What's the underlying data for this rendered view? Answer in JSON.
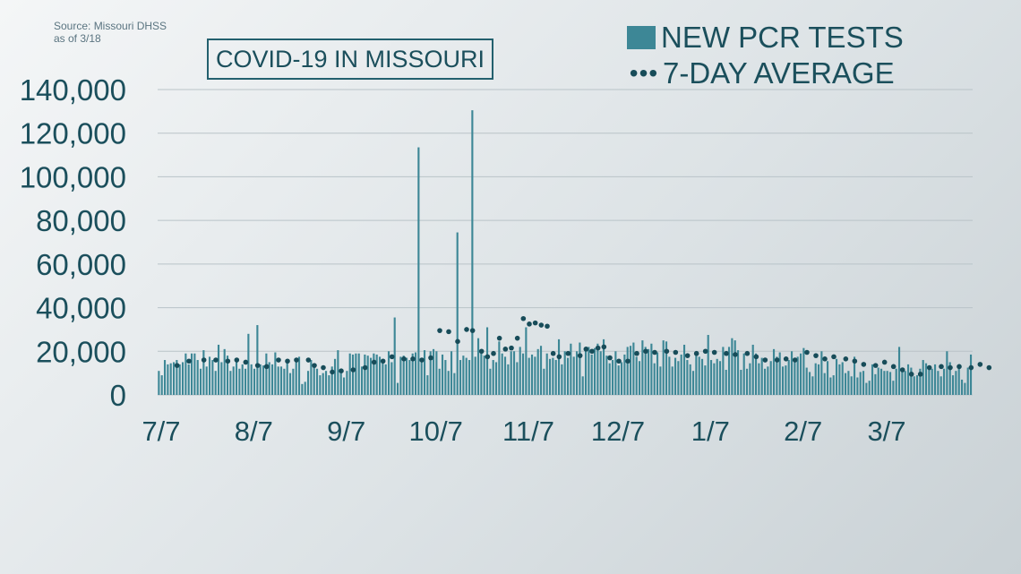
{
  "source": {
    "line1": "Source: Missouri DHSS",
    "line2": "as of 3/18"
  },
  "chart_data": {
    "type": "bar",
    "title": "COVID-19 IN MISSOURI",
    "xlabel": "",
    "ylabel": "",
    "ylim": [
      0,
      140000
    ],
    "yticks": [
      0,
      20000,
      40000,
      60000,
      80000,
      100000,
      120000,
      140000
    ],
    "ytick_labels": [
      "0",
      "20,000",
      "40,000",
      "60,000",
      "80,000",
      "100,000",
      "120,000",
      "140,000"
    ],
    "xtick_labels": [
      "7/7",
      "8/7",
      "9/7",
      "10/7",
      "11/7",
      "12/7",
      "1/7",
      "2/7",
      "3/7"
    ],
    "xtick_day_index": [
      0,
      31,
      62,
      92,
      123,
      153,
      184,
      215,
      243
    ],
    "grid": true,
    "legend_position": "top-right",
    "colors": {
      "bars": "#3d8796",
      "dots": "#174c59",
      "grid": "#b9c3c8",
      "text": "#1b4f5c"
    },
    "series": [
      {
        "name": "NEW PCR TESTS",
        "type": "bar",
        "values": [
          11000,
          9000,
          16000,
          14000,
          14500,
          15000,
          16000,
          14000,
          15000,
          19000,
          14000,
          19000,
          19000,
          16000,
          12000,
          20500,
          13000,
          17500,
          16000,
          11000,
          23000,
          15000,
          21000,
          18000,
          11000,
          13000,
          15000,
          12000,
          14000,
          12000,
          28000,
          14000,
          12000,
          32000,
          14000,
          13500,
          19000,
          15000,
          14000,
          19500,
          13000,
          13000,
          12000,
          15000,
          10000,
          12000,
          15000,
          17500,
          5000,
          6000,
          11000,
          16000,
          14000,
          12000,
          9000,
          10000,
          11000,
          9000,
          13000,
          16500,
          20500,
          10000,
          8000,
          11000,
          19000,
          18500,
          19000,
          19000,
          13000,
          18500,
          18000,
          17000,
          19000,
          18500,
          17500,
          15000,
          14000,
          20000,
          15000,
          35500,
          5500,
          17500,
          18000,
          17000,
          16000,
          19000,
          19500,
          113500,
          15000,
          20500,
          9000,
          20000,
          21000,
          20000,
          12000,
          18500,
          16000,
          11000,
          20000,
          10000,
          74500,
          16000,
          18000,
          17000,
          16000,
          130500,
          17500,
          26000,
          19500,
          18000,
          31000,
          12000,
          16000,
          15000,
          24500,
          19000,
          17500,
          14000,
          20000,
          20000,
          15000,
          22000,
          19000,
          31000,
          17000,
          18500,
          17500,
          21000,
          22500,
          12000,
          19000,
          16500,
          17000,
          16000,
          25500,
          14000,
          20000,
          17000,
          23500,
          17500,
          20000,
          24000,
          8500,
          20500,
          22000,
          18500,
          21500,
          23500,
          20000,
          25500,
          18000,
          14500,
          16000,
          20000,
          13500,
          15000,
          18500,
          22000,
          22500,
          24000,
          17500,
          15500,
          25000,
          22000,
          21000,
          23500,
          14500,
          19500,
          13000,
          25000,
          24500,
          17500,
          13000,
          17000,
          15500,
          18500,
          23000,
          16000,
          14000,
          11000,
          20000,
          17500,
          16500,
          13500,
          27500,
          16000,
          14500,
          16500,
          15500,
          22000,
          11500,
          22000,
          26000,
          25000,
          20500,
          11500,
          19000,
          12000,
          14500,
          23000,
          19000,
          14500,
          17000,
          12000,
          13000,
          15500,
          21000,
          17500,
          19500,
          13000,
          13500,
          16000,
          20000,
          15500,
          17500,
          19000,
          21500,
          12500,
          10500,
          8500,
          14500,
          14000,
          20000,
          10000,
          15500,
          8000,
          9000,
          16500,
          14000,
          15000,
          10000,
          11000,
          8500,
          17500,
          8000,
          10500,
          11000,
          5500,
          6500,
          14000,
          9500,
          12500,
          12000,
          11000,
          11000,
          10500,
          6500,
          12000,
          22000,
          11500,
          11000,
          14000,
          12500,
          8500,
          9000,
          12000,
          16000,
          14500,
          11500,
          12000,
          14000,
          11000,
          8500,
          12000,
          20000,
          15000,
          9000,
          11000,
          12000,
          7000,
          5500,
          12500,
          18500
        ]
      },
      {
        "name": "7-DAY AVERAGE",
        "type": "scatter",
        "points": [
          [
            6,
            13500
          ],
          [
            10,
            15500
          ],
          [
            15,
            16000
          ],
          [
            19,
            16000
          ],
          [
            23,
            15500
          ],
          [
            26,
            16000
          ],
          [
            29,
            15000
          ],
          [
            33,
            13500
          ],
          [
            36,
            13000
          ],
          [
            40,
            16000
          ],
          [
            43,
            15500
          ],
          [
            46,
            16000
          ],
          [
            50,
            16000
          ],
          [
            52,
            13500
          ],
          [
            55,
            12500
          ],
          [
            58,
            10500
          ],
          [
            61,
            11000
          ],
          [
            65,
            11500
          ],
          [
            69,
            12500
          ],
          [
            72,
            15000
          ],
          [
            75,
            15500
          ],
          [
            78,
            17500
          ],
          [
            82,
            16500
          ],
          [
            85,
            16500
          ],
          [
            88,
            16000
          ],
          [
            91,
            17000
          ],
          [
            94,
            29500
          ],
          [
            97,
            29000
          ],
          [
            100,
            24500
          ],
          [
            103,
            30000
          ],
          [
            105,
            29500
          ],
          [
            108,
            20000
          ],
          [
            110,
            17500
          ],
          [
            112,
            19000
          ],
          [
            114,
            26000
          ],
          [
            116,
            21000
          ],
          [
            118,
            21500
          ],
          [
            120,
            26000
          ],
          [
            122,
            35000
          ],
          [
            124,
            32500
          ],
          [
            126,
            33000
          ],
          [
            128,
            32000
          ],
          [
            130,
            31500
          ],
          [
            132,
            19000
          ],
          [
            134,
            17500
          ],
          [
            137,
            19000
          ],
          [
            141,
            18000
          ],
          [
            143,
            21000
          ],
          [
            145,
            20000
          ],
          [
            147,
            21500
          ],
          [
            149,
            22000
          ],
          [
            151,
            17000
          ],
          [
            154,
            15500
          ],
          [
            157,
            15500
          ],
          [
            160,
            19000
          ],
          [
            163,
            20000
          ],
          [
            166,
            19500
          ],
          [
            170,
            20000
          ],
          [
            173,
            19500
          ],
          [
            177,
            18000
          ],
          [
            180,
            19000
          ],
          [
            183,
            20000
          ],
          [
            186,
            19500
          ],
          [
            190,
            19000
          ],
          [
            193,
            18500
          ],
          [
            197,
            19000
          ],
          [
            200,
            17500
          ],
          [
            203,
            16000
          ],
          [
            207,
            16000
          ],
          [
            210,
            16500
          ],
          [
            213,
            16000
          ],
          [
            217,
            19500
          ],
          [
            220,
            18000
          ],
          [
            223,
            16500
          ],
          [
            226,
            17500
          ],
          [
            230,
            16500
          ],
          [
            233,
            15500
          ],
          [
            236,
            14000
          ],
          [
            240,
            13500
          ],
          [
            243,
            15000
          ],
          [
            246,
            13000
          ],
          [
            249,
            11500
          ],
          [
            252,
            9500
          ],
          [
            255,
            9500
          ],
          [
            258,
            12500
          ],
          [
            262,
            13000
          ],
          [
            265,
            12500
          ],
          [
            268,
            13000
          ],
          [
            272,
            12500
          ],
          [
            275,
            14000
          ],
          [
            278,
            12500
          ]
        ]
      }
    ]
  }
}
